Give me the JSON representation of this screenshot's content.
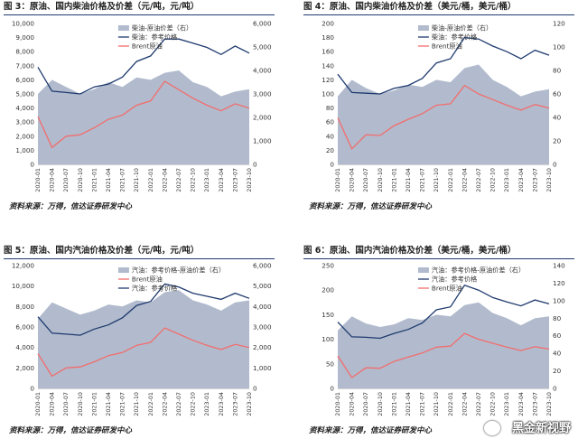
{
  "figures": [
    {
      "header": "图 3：原油、国内柴油价格及价差（元/吨，元/吨）",
      "source": "资料来源：万得，信达证券研发中心"
    },
    {
      "header": "图 4：原油、国内柴油价格及价差（美元/桶，美元/桶）",
      "source": "资料来源：万得，信达证券研发中心"
    },
    {
      "header": "图 5：原油、国内汽油价格及价差（元/吨，元/吨）",
      "source": "资料来源：万得，信达证券研发中心"
    },
    {
      "header": "图 6：原油、国内汽油价格及价差（美元/桶，美元/桶）",
      "source": "资料来源：万得，信达证券研发中心"
    }
  ],
  "watermark": "黑金新视野",
  "colors": {
    "spread": "#b1bbcd",
    "product": "#1f3a6e",
    "brent": "#f26d6d",
    "rule": "#1f3a6e"
  },
  "chart_data": [
    {
      "type": "area",
      "x": [
        "2020-01",
        "2020-04",
        "2020-07",
        "2020-10",
        "2021-01",
        "2021-04",
        "2021-07",
        "2021-10",
        "2022-01",
        "2022-04",
        "2022-07",
        "2022-10",
        "2023-01",
        "2023-04",
        "2023-07",
        "2023-10"
      ],
      "ylim": [
        0,
        10000
      ],
      "yticks": [
        "0",
        "1,000",
        "2,000",
        "3,000",
        "4,000",
        "5,000",
        "6,000",
        "7,000",
        "8,000",
        "9,000",
        "10,000"
      ],
      "y2lim": [
        0,
        6000
      ],
      "y2ticks": [
        "0",
        "1,000",
        "2,000",
        "3,000",
        "4,000",
        "5,000",
        "6,000"
      ],
      "series": [
        {
          "name": "柴油-原油价差（右）",
          "kind": "area",
          "axis": "right",
          "values": [
            3000,
            3600,
            3300,
            3000,
            3200,
            3500,
            3300,
            3700,
            3600,
            3900,
            4000,
            3500,
            3300,
            2900,
            3100,
            3200
          ]
        },
        {
          "name": "柴油：参考价格",
          "kind": "line",
          "axis": "left",
          "values": [
            6900,
            5200,
            5100,
            5000,
            5500,
            5700,
            6200,
            7300,
            7700,
            8900,
            8900,
            8600,
            8300,
            7800,
            8400,
            7900
          ]
        },
        {
          "name": "Brent原油",
          "kind": "line",
          "axis": "left",
          "values": [
            3400,
            1200,
            2000,
            2100,
            2600,
            3200,
            3500,
            4200,
            4500,
            5900,
            5300,
            4700,
            4200,
            3800,
            4300,
            4000
          ]
        }
      ]
    },
    {
      "type": "area",
      "x": [
        "2020-01",
        "2020-04",
        "2020-07",
        "2020-10",
        "2021-01",
        "2021-04",
        "2021-07",
        "2021-10",
        "2022-01",
        "2022-04",
        "2022-07",
        "2022-10",
        "2023-01",
        "2023-04",
        "2023-07",
        "2023-10"
      ],
      "ylim": [
        0,
        200
      ],
      "yticks": [
        "0",
        "20",
        "40",
        "60",
        "80",
        "100",
        "120",
        "140",
        "160",
        "180",
        "200"
      ],
      "y2lim": [
        0,
        120
      ],
      "y2ticks": [
        "0",
        "20",
        "40",
        "60",
        "80",
        "100",
        "120"
      ],
      "series": [
        {
          "name": "柴油-原油价差（右）",
          "kind": "area",
          "axis": "right",
          "values": [
            58,
            72,
            65,
            60,
            63,
            68,
            66,
            72,
            70,
            82,
            85,
            72,
            66,
            58,
            62,
            64
          ]
        },
        {
          "name": "柴油：参考价格",
          "kind": "line",
          "axis": "left",
          "values": [
            128,
            102,
            101,
            100,
            108,
            112,
            122,
            144,
            150,
            180,
            178,
            168,
            160,
            150,
            162,
            155
          ]
        },
        {
          "name": "Brent原油",
          "kind": "line",
          "axis": "left",
          "values": [
            66,
            22,
            42,
            41,
            55,
            64,
            72,
            84,
            86,
            112,
            100,
            92,
            84,
            77,
            85,
            80
          ]
        }
      ]
    },
    {
      "type": "area",
      "x": [
        "2020-01",
        "2020-04",
        "2020-07",
        "2020-10",
        "2021-01",
        "2021-04",
        "2021-07",
        "2021-10",
        "2022-01",
        "2022-04",
        "2022-07",
        "2022-10",
        "2023-01",
        "2023-04",
        "2023-07",
        "2023-10"
      ],
      "ylim": [
        0,
        12000
      ],
      "yticks": [
        "0",
        "2,000",
        "4,000",
        "6,000",
        "8,000",
        "10,000",
        "12,000"
      ],
      "y2lim": [
        0,
        6000
      ],
      "y2ticks": [
        "0",
        "1,000",
        "2,000",
        "3,000",
        "4,000",
        "5,000",
        "6,000"
      ],
      "series": [
        {
          "name": "汽油：参考价格-原油价差（右）",
          "kind": "area",
          "axis": "right",
          "values": [
            3400,
            4200,
            3900,
            3600,
            3800,
            4100,
            4000,
            4300,
            4200,
            4700,
            4800,
            4300,
            4100,
            3800,
            4200,
            4300
          ]
        },
        {
          "name": "Brent原油",
          "kind": "line",
          "axis": "left",
          "values": [
            3400,
            1200,
            2000,
            2100,
            2600,
            3200,
            3500,
            4200,
            4500,
            5900,
            5300,
            4700,
            4200,
            3800,
            4300,
            4000
          ]
        },
        {
          "name": "汽油：参考价格",
          "kind": "line",
          "axis": "left",
          "values": [
            7000,
            5400,
            5300,
            5200,
            5800,
            6200,
            6900,
            8100,
            8500,
            10200,
            9900,
            9300,
            9000,
            8700,
            9300,
            8800
          ]
        }
      ]
    },
    {
      "type": "area",
      "x": [
        "2020-01",
        "2020-04",
        "2020-07",
        "2020-10",
        "2021-01",
        "2021-04",
        "2021-07",
        "2021-10",
        "2022-01",
        "2022-04",
        "2022-07",
        "2022-10",
        "2023-01",
        "2023-04",
        "2023-07",
        "2023-10"
      ],
      "ylim": [
        0,
        250
      ],
      "yticks": [
        "0",
        "50",
        "100",
        "150",
        "200",
        "250"
      ],
      "y2lim": [
        0,
        140
      ],
      "y2ticks": [
        "0",
        "20",
        "40",
        "60",
        "80",
        "100",
        "120",
        "140"
      ],
      "series": [
        {
          "name": "汽油：参考价格-原油价差（右）",
          "kind": "area",
          "axis": "right",
          "values": [
            66,
            82,
            74,
            70,
            73,
            80,
            78,
            84,
            82,
            95,
            98,
            86,
            80,
            72,
            80,
            82
          ]
        },
        {
          "name": "汽油：参考价格",
          "kind": "line",
          "axis": "left",
          "values": [
            135,
            105,
            104,
            102,
            112,
            120,
            133,
            160,
            166,
            210,
            200,
            185,
            176,
            168,
            180,
            172
          ]
        },
        {
          "name": "Brent原油",
          "kind": "line",
          "axis": "left",
          "values": [
            66,
            22,
            42,
            41,
            55,
            64,
            72,
            84,
            86,
            112,
            100,
            92,
            84,
            77,
            85,
            80
          ]
        }
      ]
    }
  ]
}
